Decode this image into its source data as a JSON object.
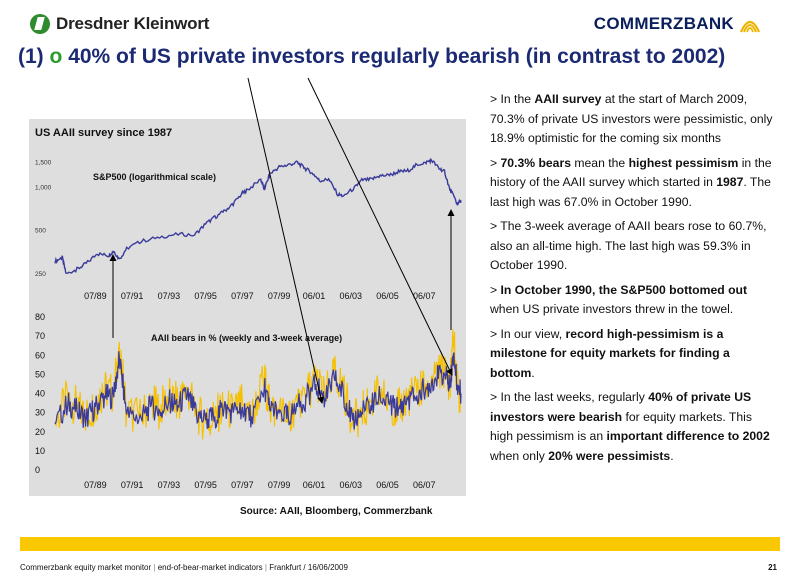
{
  "header": {
    "left_logo": "Dresdner Kleinwort",
    "right_logo": "COMMERZBANK"
  },
  "title": {
    "number": "(1)",
    "bullet": "o",
    "text": "40% of US private investors regularly bearish (in contrast to 2002)"
  },
  "colors": {
    "title": "#1b2a73",
    "bullet": "#2e9b2e",
    "footer_bar": "#fac800",
    "sp500_line": "#3a3a9a",
    "bears_weekly": "#f5c000",
    "bears_3wk": "#3a3a9a",
    "panel_bg": "#dedede"
  },
  "chart_data": [
    {
      "type": "line",
      "title": "US AAII survey since 1987",
      "series_label": "S&P500 (logarithmical scale)",
      "yscale": "log",
      "ylim": [
        230,
        1800
      ],
      "yticks": [
        "1,500",
        "1,000",
        "500",
        "250"
      ],
      "ytick_values": [
        1500,
        1000,
        500,
        250
      ],
      "xtick_labels": [
        "07/89",
        "07/91",
        "07/93",
        "07/95",
        "07/97",
        "07/99",
        "06/01",
        "06/03",
        "06/05",
        "06/07"
      ],
      "xlim": [
        1987.3,
        2009.4
      ],
      "series": [
        {
          "name": "S&P500",
          "x": [
            1987.3,
            1987.7,
            1987.9,
            1988.5,
            1989.0,
            1989.6,
            1990.2,
            1990.5,
            1990.8,
            1991.2,
            1992.0,
            1993.0,
            1994.0,
            1994.9,
            1995.5,
            1996.0,
            1996.5,
            1997.0,
            1997.5,
            1997.8,
            1998.5,
            1998.7,
            1999.0,
            1999.5,
            2000.0,
            2000.5,
            2000.9,
            2001.3,
            2001.7,
            2002.2,
            2002.7,
            2003.0,
            2003.6,
            2004.0,
            2004.5,
            2005.0,
            2005.5,
            2006.0,
            2006.5,
            2007.0,
            2007.5,
            2007.8,
            2008.2,
            2008.5,
            2008.8,
            2009.0,
            2009.2,
            2009.4
          ],
          "values": [
            300,
            320,
            245,
            265,
            290,
            340,
            330,
            355,
            310,
            370,
            415,
            445,
            465,
            460,
            550,
            610,
            670,
            760,
            900,
            950,
            1120,
            960,
            1230,
            1370,
            1420,
            1470,
            1340,
            1250,
            1100,
            1120,
            880,
            860,
            980,
            1110,
            1120,
            1190,
            1200,
            1270,
            1290,
            1420,
            1480,
            1530,
            1340,
            1280,
            950,
            860,
            750,
            800
          ]
        }
      ]
    },
    {
      "type": "line",
      "title": "AAII bears in % (weekly and 3-week average)",
      "ylim": [
        0,
        80
      ],
      "yticks": [
        0,
        10,
        20,
        30,
        40,
        50,
        60,
        70,
        80
      ],
      "xtick_labels": [
        "07/89",
        "07/91",
        "07/93",
        "07/95",
        "07/97",
        "07/99",
        "06/01",
        "06/03",
        "06/05",
        "06/07"
      ],
      "xlim": [
        1987.3,
        2009.4
      ],
      "series": [
        {
          "name": "AAII bears weekly",
          "x": [
            1987.3,
            1988.0,
            1988.5,
            1989.0,
            1989.5,
            1990.0,
            1990.5,
            1990.8,
            1991.2,
            1992.0,
            1992.5,
            1993.0,
            1993.5,
            1994.0,
            1994.5,
            1995.0,
            1995.5,
            1996.0,
            1996.5,
            1997.0,
            1997.5,
            1998.0,
            1998.7,
            1999.0,
            1999.5,
            2000.0,
            2000.5,
            2001.0,
            2001.5,
            2002.0,
            2002.5,
            2003.0,
            2003.5,
            2004.0,
            2004.5,
            2005.0,
            2005.5,
            2006.0,
            2006.5,
            2007.0,
            2007.5,
            2008.0,
            2008.5,
            2008.8,
            2009.0,
            2009.2,
            2009.4
          ],
          "values": [
            25,
            38,
            33,
            28,
            35,
            42,
            40,
            67,
            30,
            28,
            35,
            32,
            38,
            35,
            42,
            30,
            25,
            28,
            33,
            30,
            35,
            28,
            48,
            32,
            30,
            28,
            35,
            40,
            48,
            38,
            52,
            42,
            25,
            30,
            36,
            40,
            35,
            32,
            38,
            40,
            45,
            50,
            52,
            45,
            70,
            42,
            38
          ]
        },
        {
          "name": "AAII bears 3-week average",
          "x": [
            1987.3,
            1988.0,
            1988.5,
            1989.0,
            1989.5,
            1990.0,
            1990.5,
            1990.8,
            1991.2,
            1992.0,
            1992.5,
            1993.0,
            1993.5,
            1994.0,
            1994.5,
            1995.0,
            1995.5,
            1996.0,
            1996.5,
            1997.0,
            1997.5,
            1998.0,
            1998.7,
            1999.0,
            1999.5,
            2000.0,
            2000.5,
            2001.0,
            2001.5,
            2002.0,
            2002.5,
            2003.0,
            2003.5,
            2004.0,
            2004.5,
            2005.0,
            2005.5,
            2006.0,
            2006.5,
            2007.0,
            2007.5,
            2008.0,
            2008.5,
            2008.8,
            2009.0,
            2009.2,
            2009.4
          ],
          "values": [
            24,
            35,
            31,
            27,
            33,
            39,
            38,
            59,
            29,
            27,
            33,
            31,
            36,
            34,
            39,
            29,
            26,
            28,
            32,
            30,
            33,
            28,
            44,
            31,
            30,
            28,
            33,
            38,
            45,
            37,
            48,
            40,
            26,
            30,
            34,
            38,
            34,
            32,
            37,
            39,
            43,
            48,
            50,
            45,
            61,
            44,
            40
          ]
        }
      ]
    }
  ],
  "source": "Source: AAII, Bloomberg, Commerzbank",
  "bullets": [
    {
      "segments": [
        {
          "t": "> In the "
        },
        {
          "t": "AAII survey",
          "b": true
        },
        {
          "t": " at the start of March 2009, 70.3% of private US investors were pessimistic, only 18.9% optimistic for the coming six months"
        }
      ]
    },
    {
      "segments": [
        {
          "t": "> "
        },
        {
          "t": "70.3% bears",
          "b": true
        },
        {
          "t": " mean the "
        },
        {
          "t": "highest pessimism",
          "b": true
        },
        {
          "t": " in the history of the AAII survey which started in "
        },
        {
          "t": "1987",
          "b": true
        },
        {
          "t": ". The last high was 67.0% in October 1990."
        }
      ]
    },
    {
      "segments": [
        {
          "t": "> The 3-week average of AAII bears rose to 60.7%, also an all-time high. The last high was 59.3% in October 1990."
        }
      ]
    },
    {
      "segments": [
        {
          "t": "> "
        },
        {
          "t": "In October 1990, the S&P500 bottomed out",
          "b": true
        },
        {
          "t": " when US private investors threw in the towel."
        }
      ]
    },
    {
      "segments": [
        {
          "t": "> In our view, "
        },
        {
          "t": "record high-pessimism is a milestone for equity markets for finding a bottom",
          "b": true
        },
        {
          "t": "."
        }
      ]
    },
    {
      "segments": [
        {
          "t": "> In the last weeks, regularly "
        },
        {
          "t": "40% of private US investors were bearish",
          "b": true
        },
        {
          "t": " for equity markets. This high pessimism is an "
        },
        {
          "t": "important difference to 2002",
          "b": true
        },
        {
          "t": " when only "
        },
        {
          "t": "20% were pessimists",
          "b": true
        },
        {
          "t": "."
        }
      ]
    }
  ],
  "footer": {
    "text_a": "Commerzbank equity market monitor",
    "text_b": "end-of-bear-market indicators",
    "text_c": "Frankfurt / 16/06/2009",
    "page": "21"
  }
}
